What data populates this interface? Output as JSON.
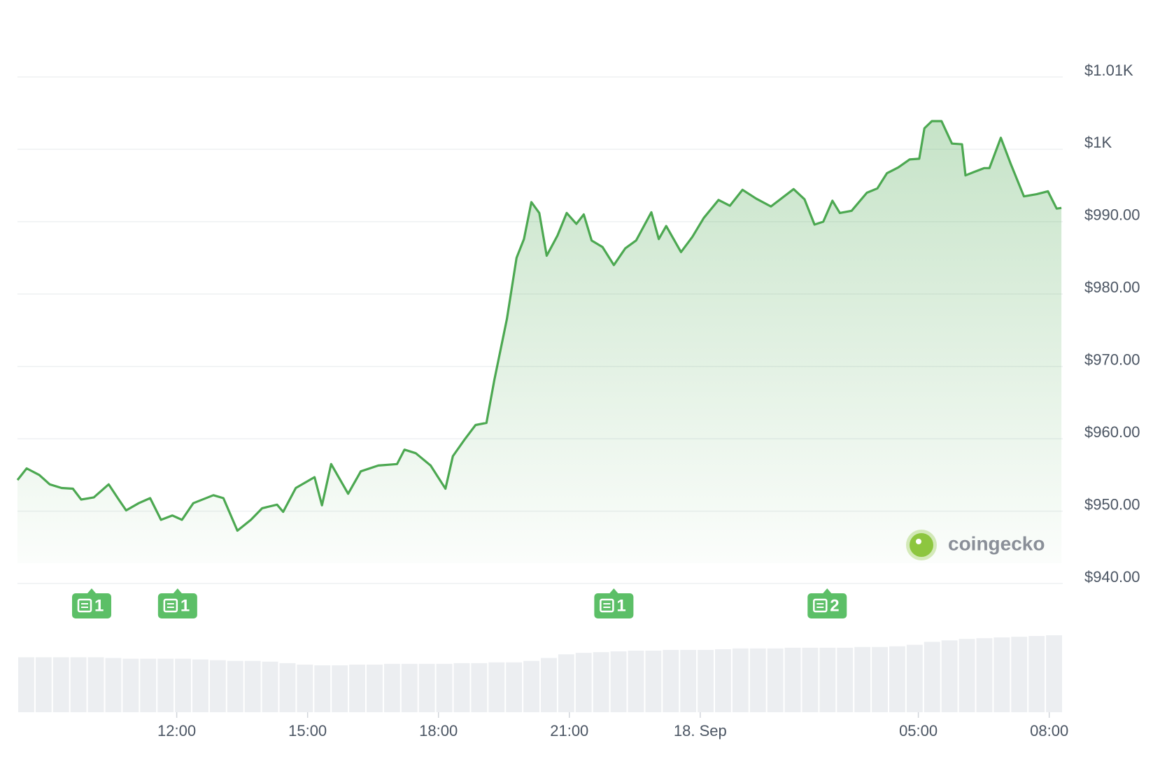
{
  "chart_data": {
    "type": "line",
    "x": [
      8.35,
      8.56,
      8.85,
      9.09,
      9.36,
      9.62,
      9.81,
      10.1,
      10.44,
      10.67,
      10.84,
      11.13,
      11.39,
      11.64,
      11.9,
      12.12,
      12.38,
      12.84,
      13.07,
      13.39,
      13.7,
      13.96,
      14.3,
      14.44,
      14.73,
      15.16,
      15.33,
      15.54,
      15.93,
      16.22,
      16.62,
      17.05,
      17.22,
      17.48,
      17.82,
      18.16,
      18.33,
      18.6,
      18.85,
      19.1,
      19.28,
      19.57,
      19.79,
      19.96,
      20.13,
      20.31,
      20.48,
      20.73,
      20.94,
      21.16,
      21.33,
      21.51,
      21.76,
      22.02,
      22.28,
      22.53,
      22.88,
      23.05,
      23.22,
      23.56,
      23.82,
      24.08,
      24.42,
      24.68,
      24.97,
      25.28,
      25.62,
      26.14,
      26.39,
      26.62,
      26.82,
      27.03,
      27.2,
      27.47,
      27.82,
      28.06,
      28.28,
      28.54,
      28.8,
      29.02,
      29.14,
      29.31,
      29.53,
      29.77,
      30.0,
      30.08,
      30.29,
      30.51,
      30.63,
      30.89,
      31.11,
      31.42,
      31.71,
      31.97,
      32.17,
      32.28
    ],
    "series": [
      {
        "color": "#4ca851",
        "values": [
          954.3,
          955.9,
          955.0,
          953.7,
          953.2,
          953.1,
          951.6,
          951.9,
          953.7,
          951.6,
          950.1,
          951.1,
          951.8,
          948.8,
          949.4,
          948.8,
          951.1,
          952.2,
          951.8,
          947.3,
          948.8,
          950.4,
          950.9,
          949.9,
          953.2,
          954.7,
          950.8,
          956.5,
          952.4,
          955.5,
          956.3,
          956.5,
          958.5,
          958.0,
          956.3,
          953.1,
          957.6,
          959.9,
          961.9,
          962.2,
          968.1,
          976.6,
          985.0,
          987.6,
          992.7,
          991.2,
          985.3,
          988.1,
          991.2,
          989.7,
          991.0,
          987.4,
          986.5,
          984.0,
          986.3,
          987.4,
          991.3,
          987.6,
          989.4,
          985.8,
          987.9,
          990.5,
          993.0,
          992.2,
          994.4,
          993.2,
          992.1,
          994.5,
          993.1,
          989.6,
          990.0,
          992.9,
          991.2,
          991.5,
          994.0,
          994.6,
          996.7,
          997.5,
          998.6,
          998.7,
          1002.9,
          1003.9,
          1003.9,
          1000.8,
          1000.7,
          996.4,
          996.9,
          997.4,
          997.4,
          1001.6,
          998.1,
          993.5,
          993.8,
          994.2,
          991.8,
          991.9
        ]
      }
    ],
    "xlim": [
      8.35,
      32.31
    ],
    "xticks": [
      {
        "value": 12,
        "label": "12:00"
      },
      {
        "value": 15,
        "label": "15:00"
      },
      {
        "value": 18,
        "label": "18:00"
      },
      {
        "value": 21,
        "label": "21:00"
      },
      {
        "value": 24,
        "label": "18. Sep"
      },
      {
        "value": 29,
        "label": "05:00"
      },
      {
        "value": 32,
        "label": "08:00"
      }
    ],
    "ylim": [
      940,
      1010
    ],
    "yticks": [
      {
        "value": 940,
        "label": "$940.00"
      },
      {
        "value": 950,
        "label": "$950.00"
      },
      {
        "value": 960,
        "label": "$960.00"
      },
      {
        "value": 970,
        "label": "$970.00"
      },
      {
        "value": 980,
        "label": "$980.00"
      },
      {
        "value": 990,
        "label": "$990.00"
      },
      {
        "value": 1000,
        "label": "$1K"
      },
      {
        "value": 1010,
        "label": "$1.01K"
      }
    ],
    "grid": true,
    "news": [
      {
        "x": 10.05,
        "count": 1
      },
      {
        "x": 12.02,
        "count": 1
      },
      {
        "x": 22.02,
        "count": 1
      },
      {
        "x": 26.91,
        "count": 2
      }
    ],
    "volume": {
      "color": "#eceef1",
      "values": [
        75,
        75,
        75,
        75,
        75,
        74,
        73,
        73,
        73,
        73,
        72,
        71,
        70,
        70,
        69,
        67,
        65,
        64,
        64,
        65,
        65,
        66,
        66,
        66,
        66,
        67,
        67,
        68,
        68,
        70,
        74,
        79,
        81,
        82,
        83,
        84,
        84,
        85,
        85,
        85,
        86,
        87,
        87,
        87,
        88,
        88,
        88,
        88,
        89,
        89,
        90,
        92,
        96,
        98,
        100,
        101,
        102,
        103,
        104,
        105
      ]
    },
    "brand": "coingecko"
  }
}
